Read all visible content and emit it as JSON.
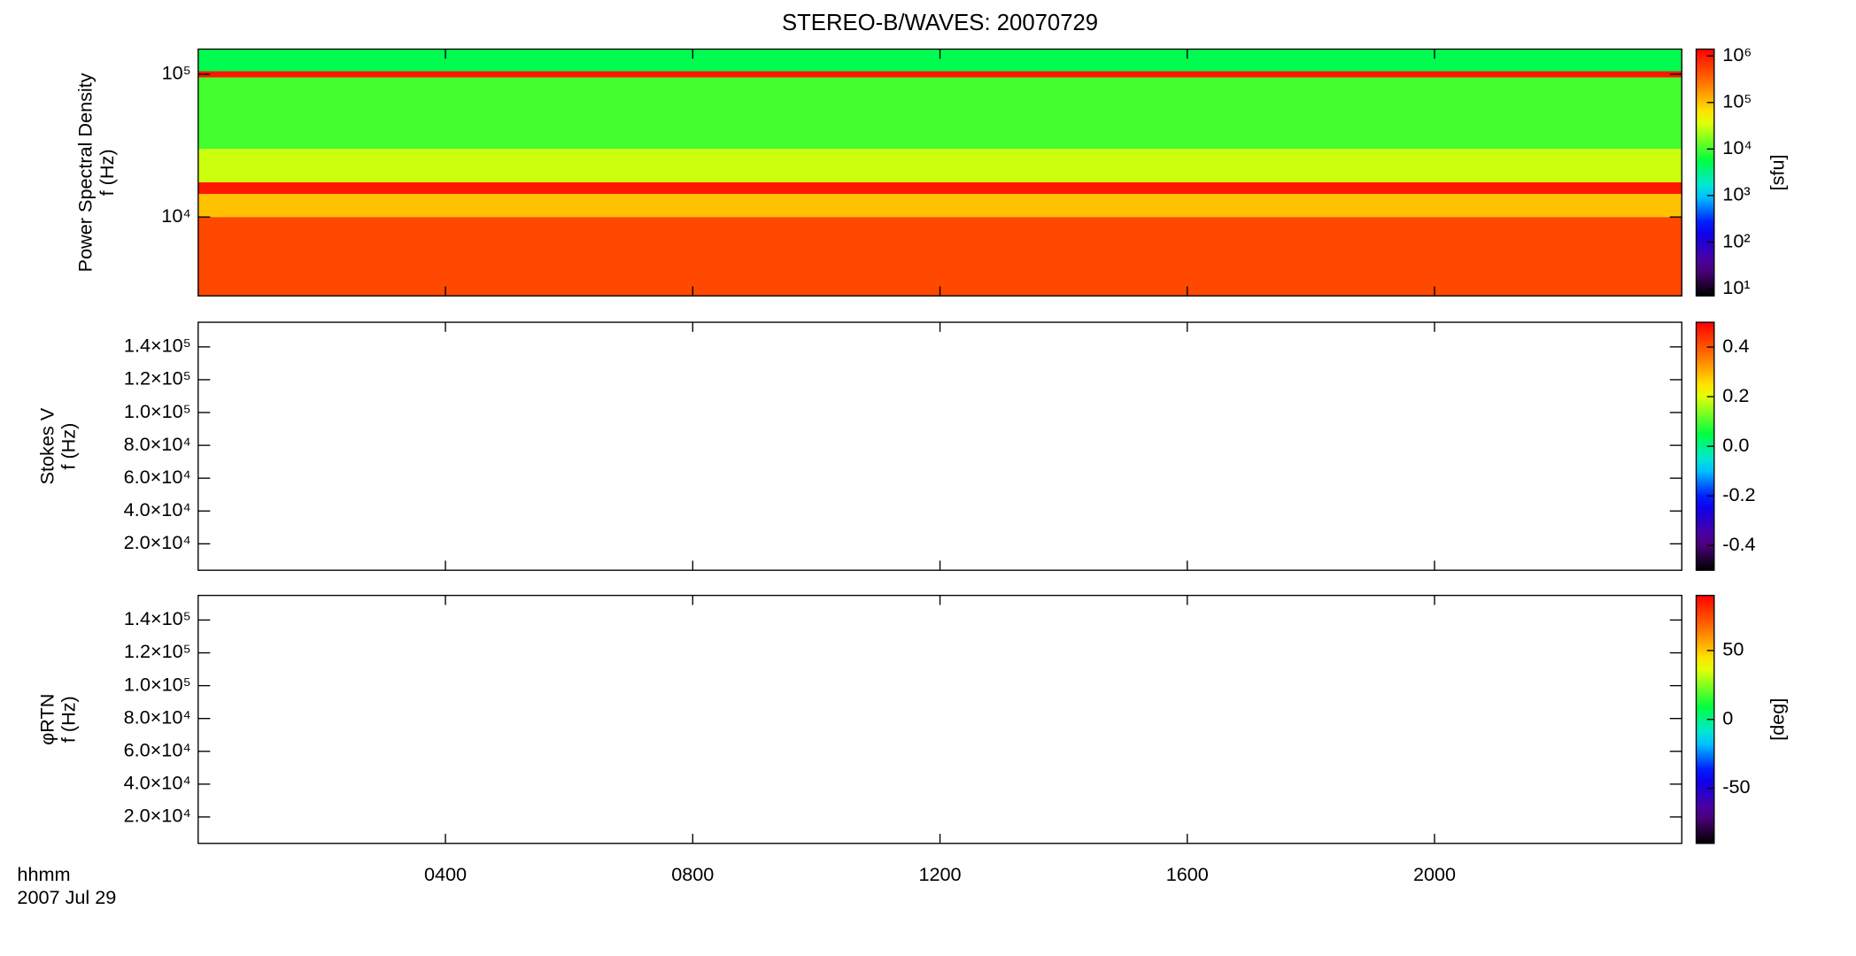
{
  "title": "STEREO-B/WAVES: 20070729",
  "x_caption": [
    "hhmm",
    "2007 Jul 29"
  ],
  "chart_data": [
    {
      "type": "spectrogram",
      "ylabel": [
        "Power Spectral Density",
        "f (Hz)"
      ],
      "ylog": true,
      "ylim": [
        2800,
        150000
      ],
      "yticks": [
        {
          "value": 10000,
          "label": "10⁴"
        },
        {
          "value": 100000,
          "label": "10⁵"
        }
      ],
      "bands": [
        {
          "ylo": 2800,
          "yhi": 10000,
          "value": 500000
        },
        {
          "ylo": 10000,
          "yhi": 14500,
          "value": 100000
        },
        {
          "ylo": 14500,
          "yhi": 17500,
          "value": 1000000
        },
        {
          "ylo": 17500,
          "yhi": 30000,
          "value": 30000
        },
        {
          "ylo": 30000,
          "yhi": 95000,
          "value": 10000
        },
        {
          "ylo": 95000,
          "yhi": 105000,
          "value": 1000000
        },
        {
          "ylo": 105000,
          "yhi": 150000,
          "value": 5000
        }
      ],
      "clog": true,
      "clim": [
        7,
        1400000
      ],
      "cticks": [
        {
          "value": 10,
          "label": "10¹"
        },
        {
          "value": 100,
          "label": "10²"
        },
        {
          "value": 1000,
          "label": "10³"
        },
        {
          "value": 10000,
          "label": "10⁴"
        },
        {
          "value": 100000,
          "label": "10⁵"
        },
        {
          "value": 1000000,
          "label": "10⁶"
        }
      ],
      "clabel": "[sfu]"
    },
    {
      "type": "spectrogram",
      "ylabel": [
        "Stokes V",
        "f (Hz)"
      ],
      "ylog": false,
      "ylim": [
        3900,
        155000
      ],
      "yticks": [
        {
          "value": 20000,
          "label": "2.0×10⁴"
        },
        {
          "value": 40000,
          "label": "4.0×10⁴"
        },
        {
          "value": 60000,
          "label": "6.0×10⁴"
        },
        {
          "value": 80000,
          "label": "8.0×10⁴"
        },
        {
          "value": 100000,
          "label": "1.0×10⁵"
        },
        {
          "value": 120000,
          "label": "1.2×10⁵"
        },
        {
          "value": 140000,
          "label": "1.4×10⁵"
        }
      ],
      "bands": [],
      "clog": false,
      "clim": [
        -0.5,
        0.5
      ],
      "cticks": [
        -0.4,
        -0.2,
        {
          "value": 0,
          "label": "0.0"
        },
        0.2,
        0.4
      ]
    },
    {
      "type": "spectrogram",
      "ylabel": [
        "φRTN",
        "f (Hz)"
      ],
      "ylog": false,
      "ylim": [
        3900,
        155000
      ],
      "yticks": [
        {
          "value": 20000,
          "label": "2.0×10⁴"
        },
        {
          "value": 40000,
          "label": "4.0×10⁴"
        },
        {
          "value": 60000,
          "label": "6.0×10⁴"
        },
        {
          "value": 80000,
          "label": "8.0×10⁴"
        },
        {
          "value": 100000,
          "label": "1.0×10⁵"
        },
        {
          "value": 120000,
          "label": "1.2×10⁵"
        },
        {
          "value": 140000,
          "label": "1.4×10⁵"
        }
      ],
      "bands": [],
      "clog": false,
      "clim": [
        -90,
        90
      ],
      "cticks": [
        -50,
        0,
        50
      ],
      "clabel": "[deg]",
      "xlim": [
        0,
        24
      ],
      "xticks": [
        {
          "value": 4,
          "label": "0400"
        },
        {
          "value": 8,
          "label": "0800"
        },
        {
          "value": 12,
          "label": "1200"
        },
        {
          "value": 16,
          "label": "1600"
        },
        {
          "value": 20,
          "label": "2000"
        }
      ]
    }
  ]
}
